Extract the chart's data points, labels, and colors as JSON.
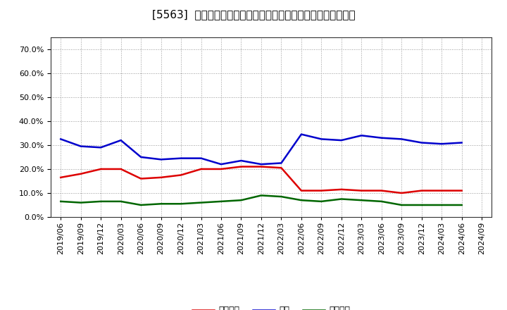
{
  "title": "[5563]  売上債権、在庫、買入債務の総資産に対する比率の推移",
  "dates": [
    "2019/06",
    "2019/09",
    "2019/12",
    "2020/03",
    "2020/06",
    "2020/09",
    "2020/12",
    "2021/03",
    "2021/06",
    "2021/09",
    "2021/12",
    "2022/03",
    "2022/06",
    "2022/09",
    "2022/12",
    "2023/03",
    "2023/06",
    "2023/09",
    "2023/12",
    "2024/03",
    "2024/06",
    "2024/09"
  ],
  "urikake": [
    16.5,
    18.0,
    20.0,
    20.0,
    16.0,
    16.5,
    17.5,
    20.0,
    20.0,
    21.0,
    21.0,
    20.5,
    11.0,
    11.0,
    11.5,
    11.0,
    11.0,
    10.0,
    11.0,
    11.0,
    11.0,
    null
  ],
  "zaiko": [
    32.5,
    29.5,
    29.0,
    32.0,
    25.0,
    24.0,
    24.5,
    24.5,
    22.0,
    23.5,
    22.0,
    22.5,
    34.5,
    32.5,
    32.0,
    34.0,
    33.0,
    32.5,
    31.0,
    30.5,
    31.0,
    null
  ],
  "kaiire": [
    6.5,
    6.0,
    6.5,
    6.5,
    5.0,
    5.5,
    5.5,
    6.0,
    6.5,
    7.0,
    9.0,
    8.5,
    7.0,
    6.5,
    7.5,
    7.0,
    6.5,
    5.0,
    5.0,
    5.0,
    5.0,
    null
  ],
  "urikake_color": "#dd0000",
  "zaiko_color": "#0000cc",
  "kaiire_color": "#006600",
  "bg_color": "#ffffff",
  "grid_color": "#999999",
  "ylim": [
    0.0,
    0.75
  ],
  "yticks": [
    0.0,
    0.1,
    0.2,
    0.3,
    0.4,
    0.5,
    0.6,
    0.7
  ],
  "legend_labels": [
    "売上債権",
    "在庫",
    "買入債務"
  ],
  "title_fontsize": 11,
  "legend_fontsize": 9,
  "tick_fontsize": 8,
  "linewidth": 1.8
}
